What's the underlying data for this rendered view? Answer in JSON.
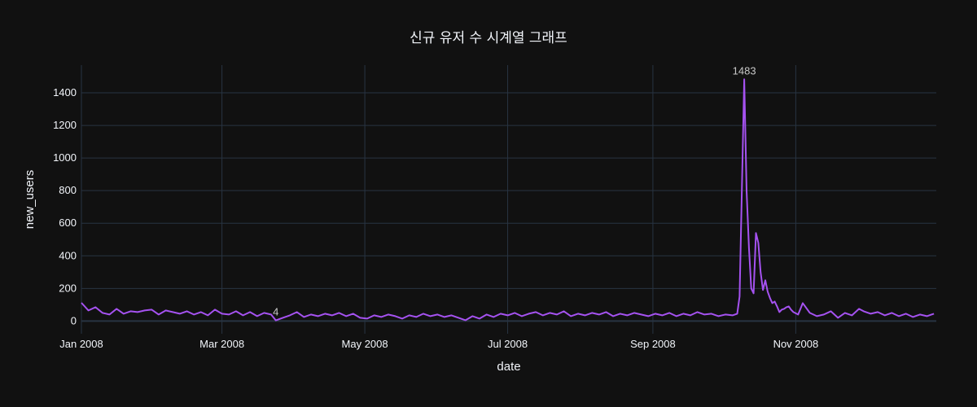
{
  "chart_data": {
    "type": "line",
    "title": "신규 유저 수 시계열 그래프",
    "xlabel": "date",
    "ylabel": "new_users",
    "x_range": [
      "2008-01-01",
      "2008-12-31"
    ],
    "ylim": [
      -78,
      1570
    ],
    "grid": true,
    "x_ticks": [
      {
        "label": "Jan 2008",
        "date": "2008-01-01"
      },
      {
        "label": "Mar 2008",
        "date": "2008-03-01"
      },
      {
        "label": "May 2008",
        "date": "2008-05-01"
      },
      {
        "label": "Jul 2008",
        "date": "2008-07-01"
      },
      {
        "label": "Sep 2008",
        "date": "2008-09-01"
      },
      {
        "label": "Nov 2008",
        "date": "2008-11-01"
      }
    ],
    "y_ticks": [
      0,
      200,
      400,
      600,
      800,
      1000,
      1200,
      1400
    ],
    "colors": {
      "line": "#a552f0",
      "background": "#111111",
      "grid": "#283442",
      "text": "#f2f5fa"
    },
    "annotations": [
      {
        "text": "1483",
        "date": "2008-10-10",
        "value": 1483
      },
      {
        "text": "4",
        "date": "2008-03-24",
        "value": 4
      }
    ],
    "series": [
      {
        "points": [
          [
            "2008-01-01",
            112
          ],
          [
            "2008-01-04",
            65
          ],
          [
            "2008-01-07",
            85
          ],
          [
            "2008-01-10",
            50
          ],
          [
            "2008-01-13",
            40
          ],
          [
            "2008-01-16",
            75
          ],
          [
            "2008-01-19",
            45
          ],
          [
            "2008-01-22",
            60
          ],
          [
            "2008-01-25",
            55
          ],
          [
            "2008-01-28",
            65
          ],
          [
            "2008-01-31",
            70
          ],
          [
            "2008-02-03",
            40
          ],
          [
            "2008-02-06",
            65
          ],
          [
            "2008-02-09",
            55
          ],
          [
            "2008-02-12",
            45
          ],
          [
            "2008-02-15",
            60
          ],
          [
            "2008-02-18",
            40
          ],
          [
            "2008-02-21",
            55
          ],
          [
            "2008-02-24",
            35
          ],
          [
            "2008-02-27",
            70
          ],
          [
            "2008-03-01",
            45
          ],
          [
            "2008-03-04",
            40
          ],
          [
            "2008-03-07",
            60
          ],
          [
            "2008-03-10",
            35
          ],
          [
            "2008-03-13",
            55
          ],
          [
            "2008-03-16",
            30
          ],
          [
            "2008-03-19",
            50
          ],
          [
            "2008-03-22",
            40
          ],
          [
            "2008-03-24",
            4
          ],
          [
            "2008-03-27",
            20
          ],
          [
            "2008-03-30",
            35
          ],
          [
            "2008-04-02",
            55
          ],
          [
            "2008-04-05",
            25
          ],
          [
            "2008-04-08",
            40
          ],
          [
            "2008-04-11",
            30
          ],
          [
            "2008-04-14",
            45
          ],
          [
            "2008-04-17",
            35
          ],
          [
            "2008-04-20",
            50
          ],
          [
            "2008-04-23",
            30
          ],
          [
            "2008-04-26",
            45
          ],
          [
            "2008-04-29",
            20
          ],
          [
            "2008-05-02",
            15
          ],
          [
            "2008-05-05",
            35
          ],
          [
            "2008-05-08",
            25
          ],
          [
            "2008-05-11",
            40
          ],
          [
            "2008-05-14",
            30
          ],
          [
            "2008-05-17",
            15
          ],
          [
            "2008-05-20",
            35
          ],
          [
            "2008-05-23",
            25
          ],
          [
            "2008-05-26",
            45
          ],
          [
            "2008-05-29",
            30
          ],
          [
            "2008-06-01",
            40
          ],
          [
            "2008-06-04",
            25
          ],
          [
            "2008-06-07",
            35
          ],
          [
            "2008-06-10",
            20
          ],
          [
            "2008-06-13",
            5
          ],
          [
            "2008-06-16",
            30
          ],
          [
            "2008-06-19",
            15
          ],
          [
            "2008-06-22",
            40
          ],
          [
            "2008-06-25",
            25
          ],
          [
            "2008-06-28",
            45
          ],
          [
            "2008-07-01",
            35
          ],
          [
            "2008-07-04",
            50
          ],
          [
            "2008-07-07",
            30
          ],
          [
            "2008-07-10",
            45
          ],
          [
            "2008-07-13",
            55
          ],
          [
            "2008-07-16",
            35
          ],
          [
            "2008-07-19",
            50
          ],
          [
            "2008-07-22",
            40
          ],
          [
            "2008-07-25",
            60
          ],
          [
            "2008-07-28",
            30
          ],
          [
            "2008-07-31",
            45
          ],
          [
            "2008-08-03",
            35
          ],
          [
            "2008-08-06",
            50
          ],
          [
            "2008-08-09",
            40
          ],
          [
            "2008-08-12",
            55
          ],
          [
            "2008-08-15",
            30
          ],
          [
            "2008-08-18",
            45
          ],
          [
            "2008-08-21",
            35
          ],
          [
            "2008-08-24",
            50
          ],
          [
            "2008-08-27",
            40
          ],
          [
            "2008-08-30",
            30
          ],
          [
            "2008-09-02",
            45
          ],
          [
            "2008-09-05",
            35
          ],
          [
            "2008-09-08",
            50
          ],
          [
            "2008-09-11",
            30
          ],
          [
            "2008-09-14",
            45
          ],
          [
            "2008-09-17",
            35
          ],
          [
            "2008-09-20",
            55
          ],
          [
            "2008-09-23",
            40
          ],
          [
            "2008-09-26",
            45
          ],
          [
            "2008-09-29",
            30
          ],
          [
            "2008-10-02",
            40
          ],
          [
            "2008-10-05",
            35
          ],
          [
            "2008-10-07",
            45
          ],
          [
            "2008-10-08",
            150
          ],
          [
            "2008-10-10",
            1483
          ],
          [
            "2008-10-11",
            800
          ],
          [
            "2008-10-12",
            450
          ],
          [
            "2008-10-13",
            200
          ],
          [
            "2008-10-14",
            170
          ],
          [
            "2008-10-15",
            540
          ],
          [
            "2008-10-16",
            480
          ],
          [
            "2008-10-17",
            300
          ],
          [
            "2008-10-18",
            190
          ],
          [
            "2008-10-19",
            250
          ],
          [
            "2008-10-20",
            180
          ],
          [
            "2008-10-21",
            140
          ],
          [
            "2008-10-22",
            110
          ],
          [
            "2008-10-23",
            120
          ],
          [
            "2008-10-24",
            90
          ],
          [
            "2008-10-25",
            55
          ],
          [
            "2008-10-26",
            70
          ],
          [
            "2008-10-27",
            75
          ],
          [
            "2008-10-28",
            85
          ],
          [
            "2008-10-29",
            90
          ],
          [
            "2008-10-30",
            70
          ],
          [
            "2008-10-31",
            55
          ],
          [
            "2008-11-02",
            40
          ],
          [
            "2008-11-04",
            110
          ],
          [
            "2008-11-07",
            50
          ],
          [
            "2008-11-10",
            30
          ],
          [
            "2008-11-13",
            40
          ],
          [
            "2008-11-16",
            60
          ],
          [
            "2008-11-19",
            20
          ],
          [
            "2008-11-22",
            50
          ],
          [
            "2008-11-25",
            35
          ],
          [
            "2008-11-28",
            75
          ],
          [
            "2008-11-30",
            60
          ],
          [
            "2008-12-03",
            45
          ],
          [
            "2008-12-06",
            55
          ],
          [
            "2008-12-09",
            35
          ],
          [
            "2008-12-12",
            50
          ],
          [
            "2008-12-15",
            30
          ],
          [
            "2008-12-18",
            45
          ],
          [
            "2008-12-21",
            25
          ],
          [
            "2008-12-24",
            40
          ],
          [
            "2008-12-27",
            30
          ],
          [
            "2008-12-30",
            45
          ]
        ]
      }
    ]
  }
}
